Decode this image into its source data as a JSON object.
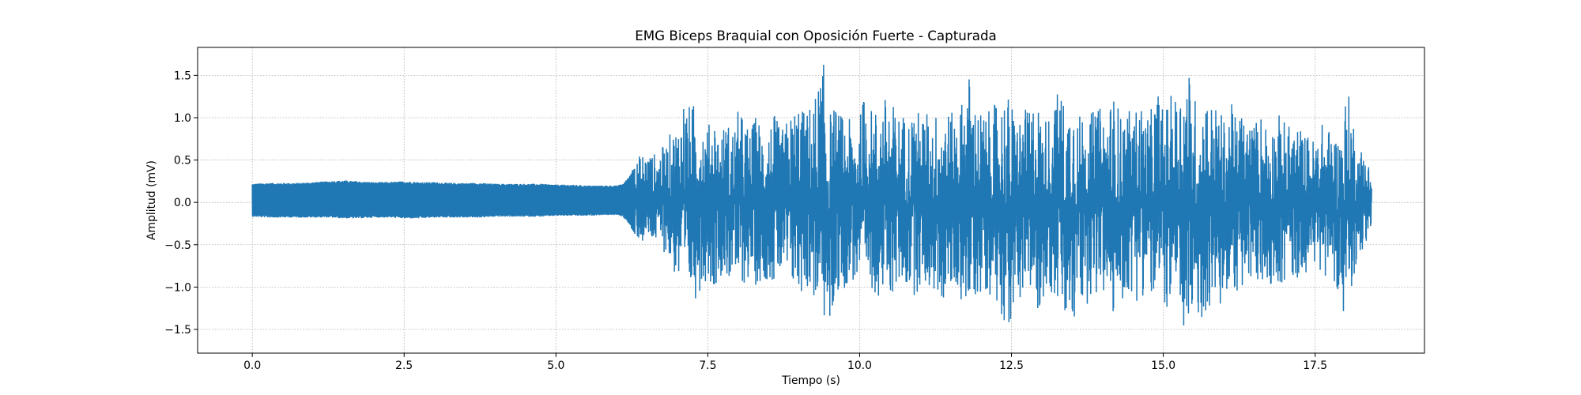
{
  "chart_data": {
    "type": "line",
    "title": "EMG Biceps Braquial con Oposición Fuerte - Capturada",
    "xlabel": "Tiempo (s)",
    "ylabel": "Amplitud (mV)",
    "xlim": [
      -0.9,
      19.3
    ],
    "ylim": [
      -1.78,
      1.83
    ],
    "x_ticks": [
      {
        "value": 0.0,
        "label": "0.0"
      },
      {
        "value": 2.5,
        "label": "2.5"
      },
      {
        "value": 5.0,
        "label": "5.0"
      },
      {
        "value": 7.5,
        "label": "7.5"
      },
      {
        "value": 10.0,
        "label": "10.0"
      },
      {
        "value": 12.5,
        "label": "12.5"
      },
      {
        "value": 15.0,
        "label": "15.0"
      },
      {
        "value": 17.5,
        "label": "17.5"
      }
    ],
    "y_ticks": [
      {
        "value": 1.5,
        "label": "1.5"
      },
      {
        "value": 1.0,
        "label": "1.0"
      },
      {
        "value": 0.5,
        "label": "0.5"
      },
      {
        "value": 0.0,
        "label": "0.0"
      },
      {
        "value": -0.5,
        "label": "−0.5"
      },
      {
        "value": -1.0,
        "label": "−1.0"
      },
      {
        "value": -1.5,
        "label": "−1.5"
      }
    ],
    "grid": true,
    "legend": false,
    "line_color": "#1f77b4",
    "series": [
      {
        "x": [
          0.0,
          0.25,
          0.5,
          0.75,
          1.0,
          1.25,
          1.5,
          1.75,
          2.0,
          2.25,
          2.5,
          2.75,
          3.0,
          3.25,
          3.5,
          3.75,
          4.0,
          4.25,
          4.5,
          4.75,
          5.0,
          5.25,
          5.5,
          5.75,
          6.0,
          6.1,
          6.2,
          6.3,
          6.4,
          6.5,
          6.6,
          6.7,
          6.8,
          6.9,
          7.0,
          7.1,
          7.2,
          7.3,
          7.4,
          7.5,
          7.6,
          7.7,
          7.8,
          7.9,
          8.0,
          8.1,
          8.2,
          8.3,
          8.4,
          8.5,
          8.6,
          8.7,
          8.8,
          8.9,
          9.0,
          9.1,
          9.2,
          9.3,
          9.4,
          9.5,
          9.6,
          9.7,
          9.8,
          9.9,
          10.0,
          10.1,
          10.2,
          10.3,
          10.4,
          10.5,
          10.6,
          10.7,
          10.8,
          10.9,
          11.0,
          11.1,
          11.2,
          11.3,
          11.4,
          11.5,
          11.6,
          11.7,
          11.8,
          11.9,
          12.0,
          12.1,
          12.2,
          12.3,
          12.4,
          12.5,
          12.6,
          12.7,
          12.8,
          12.9,
          13.0,
          13.1,
          13.2,
          13.3,
          13.4,
          13.5,
          13.6,
          13.7,
          13.8,
          13.9,
          14.0,
          14.1,
          14.2,
          14.3,
          14.4,
          14.5,
          14.6,
          14.7,
          14.8,
          14.9,
          15.0,
          15.1,
          15.2,
          15.3,
          15.4,
          15.5,
          15.6,
          15.7,
          15.8,
          15.9,
          16.0,
          16.1,
          16.2,
          16.3,
          16.4,
          16.5,
          16.6,
          16.7,
          16.8,
          16.9,
          17.0,
          17.1,
          17.2,
          17.3,
          17.4,
          17.5,
          17.6,
          17.7,
          17.8,
          17.9,
          18.0,
          18.1,
          18.2,
          18.3,
          18.43
        ],
        "upper": [
          0.22,
          0.23,
          0.23,
          0.23,
          0.24,
          0.25,
          0.26,
          0.25,
          0.24,
          0.24,
          0.25,
          0.24,
          0.24,
          0.23,
          0.23,
          0.23,
          0.22,
          0.22,
          0.22,
          0.22,
          0.21,
          0.21,
          0.2,
          0.2,
          0.2,
          0.22,
          0.3,
          0.45,
          0.6,
          0.63,
          0.58,
          0.62,
          0.7,
          0.85,
          0.95,
          1.3,
          1.15,
          1.2,
          1.05,
          0.9,
          1.1,
          0.8,
          1.0,
          0.88,
          1.1,
          1.02,
          0.85,
          1.08,
          0.9,
          0.95,
          1.05,
          0.85,
          0.98,
          1.1,
          1.25,
          1.05,
          1.2,
          1.35,
          1.68,
          1.1,
          1.15,
          1.05,
          1.0,
          0.95,
          1.0,
          1.45,
          1.1,
          1.15,
          1.25,
          1.3,
          1.05,
          1.1,
          1.0,
          1.18,
          1.05,
          1.1,
          1.0,
          1.15,
          1.2,
          1.05,
          1.12,
          1.25,
          1.55,
          1.2,
          1.1,
          1.05,
          1.15,
          1.2,
          1.35,
          1.2,
          1.05,
          1.1,
          1.1,
          1.35,
          1.0,
          1.05,
          1.2,
          1.42,
          1.1,
          1.55,
          1.0,
          1.25,
          1.05,
          1.15,
          1.1,
          1.2,
          1.3,
          1.05,
          1.15,
          1.0,
          1.25,
          1.05,
          1.1,
          1.4,
          1.1,
          1.25,
          1.3,
          1.5,
          1.68,
          1.3,
          1.15,
          1.3,
          1.2,
          1.15,
          1.0,
          1.2,
          1.05,
          1.1,
          1.0,
          0.95,
          1.1,
          1.0,
          0.95,
          1.05,
          0.98,
          0.9,
          0.95,
          0.85,
          0.8,
          0.75,
          0.95,
          0.9,
          0.85,
          0.8,
          1.3,
          1.25,
          0.6,
          0.7,
          0.35
        ],
        "lower": [
          -0.17,
          -0.18,
          -0.18,
          -0.18,
          -0.18,
          -0.18,
          -0.19,
          -0.19,
          -0.18,
          -0.18,
          -0.19,
          -0.19,
          -0.18,
          -0.18,
          -0.18,
          -0.18,
          -0.17,
          -0.17,
          -0.17,
          -0.17,
          -0.16,
          -0.16,
          -0.16,
          -0.15,
          -0.15,
          -0.17,
          -0.25,
          -0.4,
          -0.5,
          -0.52,
          -0.5,
          -0.55,
          -0.6,
          -0.8,
          -0.95,
          -1.25,
          -1.1,
          -1.15,
          -1.0,
          -0.9,
          -1.05,
          -0.85,
          -0.95,
          -0.9,
          -1.05,
          -0.98,
          -0.9,
          -1.0,
          -0.95,
          -0.9,
          -1.0,
          -0.9,
          -1.0,
          -1.05,
          -1.15,
          -1.0,
          -1.1,
          -1.25,
          -1.4,
          -1.62,
          -1.15,
          -1.05,
          -1.0,
          -0.95,
          -1.0,
          -1.2,
          -1.05,
          -1.1,
          -1.2,
          -1.15,
          -1.05,
          -1.0,
          -1.05,
          -1.1,
          -1.05,
          -1.0,
          -1.1,
          -1.15,
          -1.2,
          -1.1,
          -1.05,
          -1.2,
          -1.35,
          -1.15,
          -1.1,
          -1.05,
          -1.15,
          -1.25,
          -1.45,
          -1.55,
          -1.15,
          -1.1,
          -1.2,
          -1.3,
          -1.25,
          -1.05,
          -1.15,
          -1.3,
          -1.55,
          -1.62,
          -1.2,
          -1.3,
          -1.1,
          -1.15,
          -1.1,
          -1.25,
          -1.45,
          -1.2,
          -1.15,
          -1.1,
          -1.2,
          -1.05,
          -1.15,
          -1.35,
          -1.2,
          -1.3,
          -1.35,
          -1.62,
          -1.55,
          -1.4,
          -1.62,
          -1.3,
          -1.25,
          -1.4,
          -1.1,
          -1.2,
          -1.05,
          -1.1,
          -1.05,
          -0.95,
          -1.05,
          -1.0,
          -0.95,
          -1.0,
          -0.98,
          -0.9,
          -0.95,
          -0.85,
          -0.8,
          -0.75,
          -0.9,
          -0.85,
          -0.9,
          -1.1,
          -1.6,
          -1.3,
          -0.55,
          -0.6,
          -0.28
        ]
      }
    ]
  }
}
